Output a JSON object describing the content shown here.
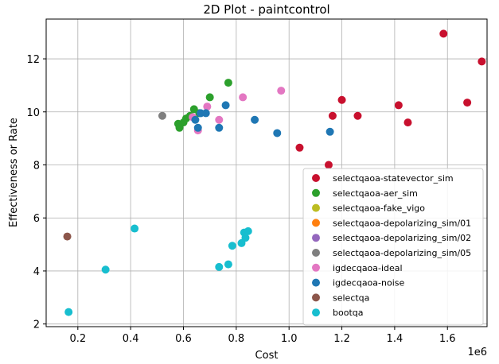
{
  "chart_data": {
    "type": "scatter",
    "title": "2D Plot - paintcontrol",
    "xlabel": "Cost",
    "ylabel": "Effectiveness or Rate",
    "x_offset_label": "1e6",
    "xlim": [
      0.08,
      1.75
    ],
    "ylim": [
      1.9,
      13.5
    ],
    "xticks": [
      0.2,
      0.4,
      0.6,
      0.8,
      1.0,
      1.2,
      1.4,
      1.6
    ],
    "xtick_labels": [
      "0.2",
      "0.4",
      "0.6",
      "0.8",
      "1.0",
      "1.2",
      "1.4",
      "1.6"
    ],
    "yticks": [
      2,
      4,
      6,
      8,
      10,
      12
    ],
    "ytick_labels": [
      "2",
      "4",
      "6",
      "8",
      "10",
      "12"
    ],
    "grid": true,
    "legend_position": "lower-right",
    "series": [
      {
        "name": "selectqaoa-statevector_sim",
        "color": "#c8102e",
        "points": [
          [
            1.04,
            8.65
          ],
          [
            1.15,
            8.0
          ],
          [
            1.165,
            9.85
          ],
          [
            1.2,
            10.45
          ],
          [
            1.26,
            9.85
          ],
          [
            1.415,
            10.25
          ],
          [
            1.45,
            9.6
          ],
          [
            1.585,
            12.95
          ],
          [
            1.675,
            10.35
          ],
          [
            1.73,
            11.9
          ]
        ]
      },
      {
        "name": "selectqaoa-aer_sim",
        "color": "#2ca02c",
        "points": [
          [
            0.58,
            9.55
          ],
          [
            0.585,
            9.4
          ],
          [
            0.6,
            9.6
          ],
          [
            0.61,
            9.75
          ],
          [
            0.625,
            9.85
          ],
          [
            0.64,
            10.1
          ],
          [
            0.66,
            9.95
          ],
          [
            0.7,
            10.55
          ],
          [
            0.77,
            11.1
          ]
        ]
      },
      {
        "name": "selectqaoa-fake_vigo",
        "color": "#bcbd22",
        "points": []
      },
      {
        "name": "selectqaoa-depolarizing_sim/01",
        "color": "#ff7f0e",
        "points": []
      },
      {
        "name": "selectqaoa-depolarizing_sim/02",
        "color": "#9467bd",
        "points": []
      },
      {
        "name": "selectqaoa-depolarizing_sim/05",
        "color": "#7f7f7f",
        "points": [
          [
            0.52,
            9.85
          ]
        ]
      },
      {
        "name": "igdecqaoa-ideal",
        "color": "#e377c2",
        "points": [
          [
            0.635,
            9.8
          ],
          [
            0.655,
            9.3
          ],
          [
            0.69,
            10.2
          ],
          [
            0.735,
            9.7
          ],
          [
            0.825,
            10.55
          ],
          [
            0.97,
            10.8
          ]
        ]
      },
      {
        "name": "igdecqaoa-noise",
        "color": "#1f77b4",
        "points": [
          [
            0.645,
            9.7
          ],
          [
            0.655,
            9.4
          ],
          [
            0.665,
            9.95
          ],
          [
            0.685,
            9.95
          ],
          [
            0.735,
            9.4
          ],
          [
            0.76,
            10.25
          ],
          [
            0.87,
            9.7
          ],
          [
            0.955,
            9.2
          ],
          [
            1.155,
            9.25
          ]
        ]
      },
      {
        "name": "selectqa",
        "color": "#8c564b",
        "points": [
          [
            0.16,
            5.3
          ]
        ]
      },
      {
        "name": "bootqa",
        "color": "#17becf",
        "points": [
          [
            0.165,
            2.45
          ],
          [
            0.305,
            4.05
          ],
          [
            0.415,
            5.6
          ],
          [
            0.735,
            4.15
          ],
          [
            0.77,
            4.25
          ],
          [
            0.785,
            4.95
          ],
          [
            0.82,
            5.05
          ],
          [
            0.83,
            5.45
          ],
          [
            0.835,
            5.25
          ],
          [
            0.845,
            5.5
          ]
        ]
      }
    ]
  }
}
